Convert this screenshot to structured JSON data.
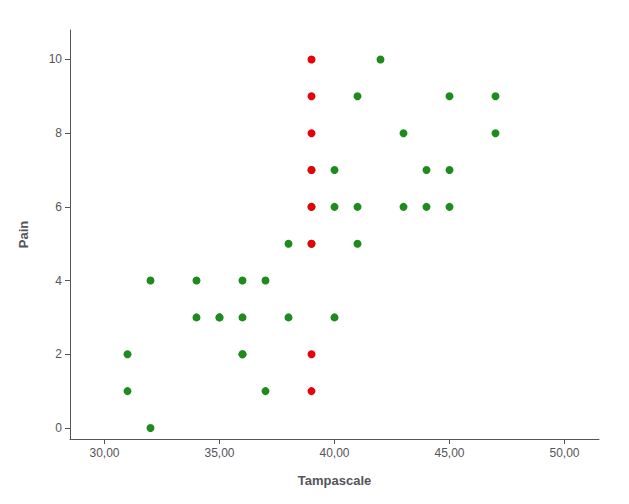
{
  "chart_data": {
    "type": "scatter",
    "xlabel": "Tampascale",
    "ylabel": "Pain",
    "series": [
      {
        "color": "#1e8b1e",
        "x": [
          31,
          31,
          32,
          32,
          34,
          34,
          35,
          35,
          36,
          36,
          36,
          36,
          37,
          37,
          38,
          38,
          39,
          39,
          39,
          40,
          40,
          40,
          41,
          41,
          41,
          42,
          43,
          43,
          44,
          44,
          45,
          45,
          45,
          47,
          47
        ],
        "values": [
          2,
          1,
          4,
          0,
          4,
          3,
          3,
          3,
          4,
          3,
          2,
          2,
          4,
          1,
          5,
          3,
          7,
          6,
          5,
          7,
          6,
          3,
          9,
          6,
          5,
          10,
          8,
          6,
          7,
          6,
          9,
          7,
          6,
          9,
          8
        ]
      },
      {
        "color": "#e8000a",
        "x": [
          39,
          39,
          39,
          39,
          39,
          39,
          39,
          39
        ],
        "values": [
          10,
          9,
          8,
          7,
          6,
          5,
          2,
          1
        ]
      }
    ],
    "xlim": [
      28.5,
      51.5
    ],
    "ylim": [
      -0.3,
      10.8
    ],
    "xticks": [
      {
        "value": 30,
        "label": "30,00"
      },
      {
        "value": 35,
        "label": "35,00"
      },
      {
        "value": 40,
        "label": "40,00"
      },
      {
        "value": 45,
        "label": "45,00"
      },
      {
        "value": 50,
        "label": "50,00"
      }
    ],
    "yticks": [
      0,
      2,
      4,
      6,
      8,
      10
    ],
    "grid": false
  }
}
